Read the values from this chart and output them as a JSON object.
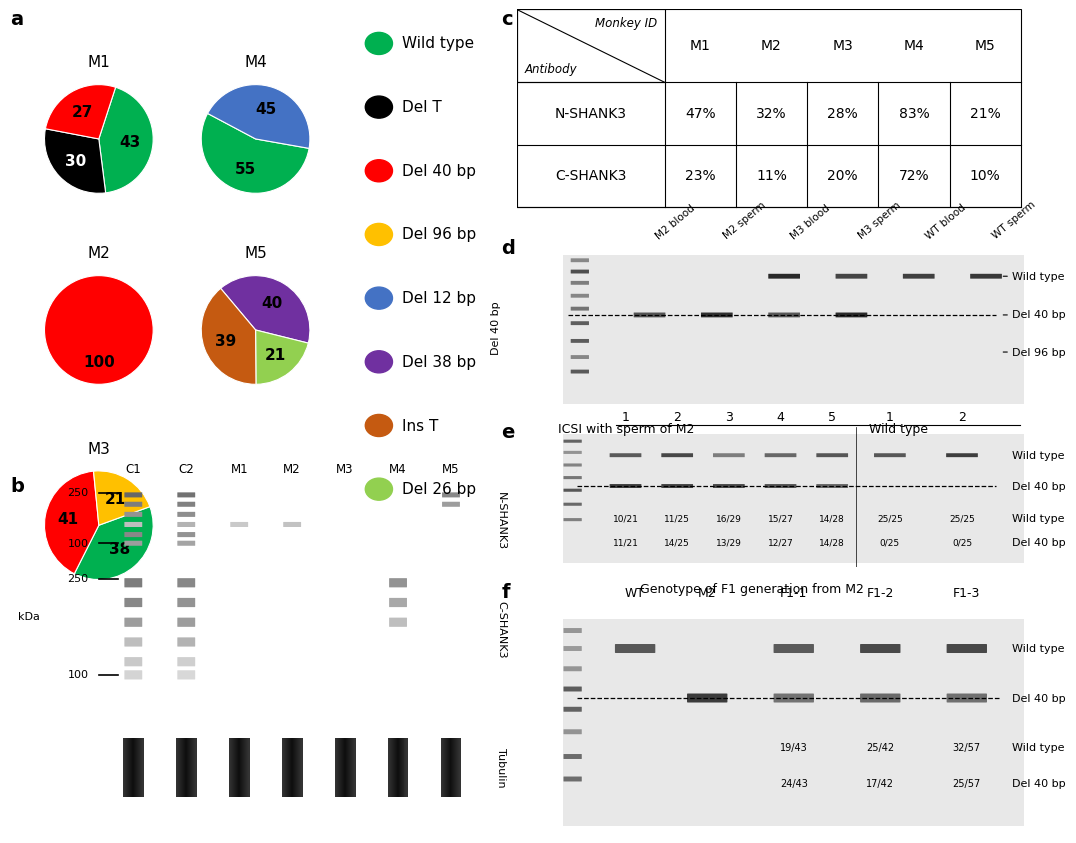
{
  "pie_charts": {
    "M1": {
      "values": [
        43,
        30,
        27
      ],
      "colors": [
        "#00b050",
        "#000000",
        "#ff0000"
      ],
      "labels": [
        "43",
        "30",
        "27"
      ],
      "label_colors": [
        "black",
        "white",
        "black"
      ],
      "startangle": 72
    },
    "M2": {
      "values": [
        100
      ],
      "colors": [
        "#ff0000"
      ],
      "labels": [
        "100"
      ],
      "label_colors": [
        "black"
      ],
      "startangle": 90
    },
    "M3": {
      "values": [
        38,
        41,
        21
      ],
      "colors": [
        "#00b050",
        "#ff0000",
        "#ffc000"
      ],
      "labels": [
        "38",
        "41",
        "21"
      ],
      "label_colors": [
        "black",
        "black",
        "black"
      ],
      "startangle": 20
    },
    "M4": {
      "values": [
        55,
        45
      ],
      "colors": [
        "#00b050",
        "#4472c4"
      ],
      "labels": [
        "55",
        "45"
      ],
      "label_colors": [
        "black",
        "black"
      ],
      "startangle": -10
    },
    "M5": {
      "values": [
        40,
        21,
        39
      ],
      "colors": [
        "#7030a0",
        "#92d050",
        "#c55a11"
      ],
      "labels": [
        "40",
        "21",
        "39"
      ],
      "label_colors": [
        "black",
        "black",
        "black"
      ],
      "startangle": 130
    }
  },
  "legend_items": [
    {
      "label": "Wild type",
      "color": "#00b050"
    },
    {
      "label": "Del T",
      "color": "#000000"
    },
    {
      "label": "Del 40 bp",
      "color": "#ff0000"
    },
    {
      "label": "Del 96 bp",
      "color": "#ffc000"
    },
    {
      "label": "Del 12 bp",
      "color": "#4472c4"
    },
    {
      "label": "Del 38 bp",
      "color": "#7030a0"
    },
    {
      "label": "Ins T",
      "color": "#c55a11"
    },
    {
      "label": "Del 26 bp",
      "color": "#92d050"
    }
  ],
  "table_c": {
    "col_headers": [
      "M1",
      "M2",
      "M3",
      "M4",
      "M5"
    ],
    "rows": [
      {
        "label": "N-SHANK3",
        "values": [
          "47%",
          "32%",
          "28%",
          "83%",
          "21%"
        ]
      },
      {
        "label": "C-SHANK3",
        "values": [
          "23%",
          "11%",
          "20%",
          "72%",
          "10%"
        ]
      }
    ]
  },
  "panel_d": {
    "lanes": [
      "M2 blood",
      "M2 sperm",
      "M3 blood",
      "M3 sperm",
      "WT blood",
      "WT sperm"
    ],
    "ylabel": "Del 40 bp",
    "band_labels": [
      "Wild type",
      "Del 40 bp",
      "Del 96 bp"
    ]
  },
  "panel_e": {
    "m2_lanes": [
      "1",
      "2",
      "3",
      "4",
      "5"
    ],
    "wt_lanes": [
      "1",
      "2"
    ],
    "ratios_wt": [
      "10/21",
      "11/25",
      "16/29",
      "15/27",
      "14/28",
      "25/25",
      "25/25"
    ],
    "ratios_del": [
      "11/21",
      "14/25",
      "13/29",
      "12/27",
      "14/28",
      "0/25",
      "0/25"
    ],
    "band_labels": [
      "Wild type",
      "Del 40 bp"
    ],
    "ratio_labels": [
      "Wild type",
      "Del 40 bp"
    ]
  },
  "panel_f": {
    "title": "Genotype of F1 generation from M2",
    "lanes": [
      "WT",
      "M2",
      "F1-1",
      "F1-2",
      "F1-3"
    ],
    "ratios_wt": [
      "19/43",
      "25/42",
      "32/57"
    ],
    "ratios_del": [
      "24/43",
      "17/42",
      "25/57"
    ],
    "band_labels": [
      "Wild type",
      "Del 40 bp"
    ],
    "ratio_labels": [
      "Wild type",
      "Del 40 bp"
    ]
  }
}
